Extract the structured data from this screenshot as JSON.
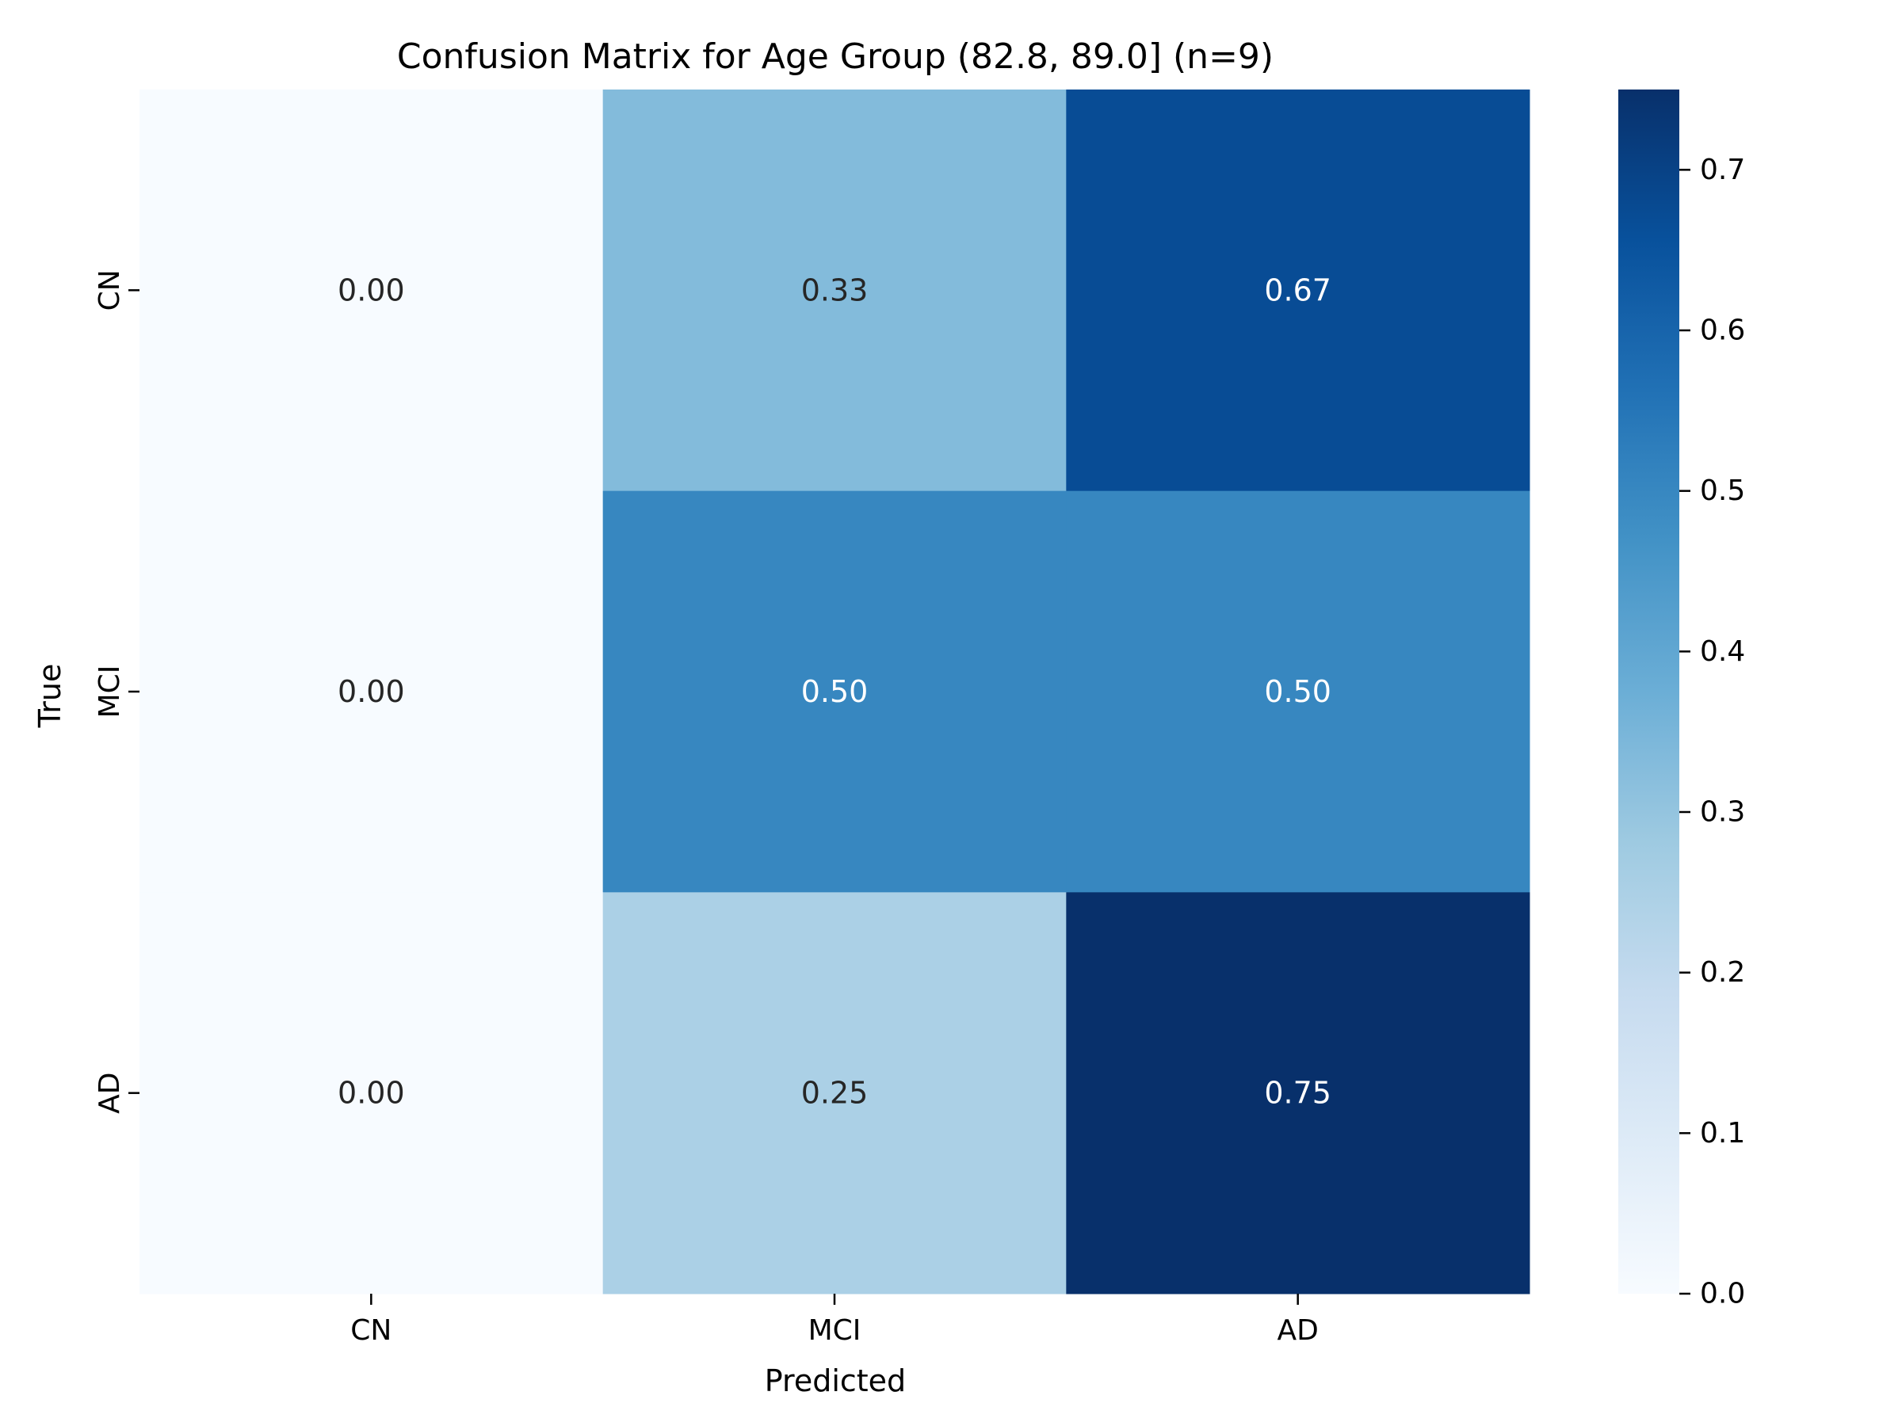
{
  "chart_data": {
    "type": "heatmap",
    "title": "Confusion Matrix for Age Group (82.8, 89.0] (n=9)",
    "xlabel": "Predicted",
    "ylabel": "True",
    "x_categories": [
      "CN",
      "MCI",
      "AD"
    ],
    "y_categories": [
      "CN",
      "MCI",
      "AD"
    ],
    "values": [
      [
        0.0,
        0.33,
        0.67
      ],
      [
        0.0,
        0.5,
        0.5
      ],
      [
        0.0,
        0.25,
        0.75
      ]
    ],
    "cell_labels": [
      [
        "0.00",
        "0.33",
        "0.67"
      ],
      [
        "0.00",
        "0.50",
        "0.50"
      ],
      [
        "0.00",
        "0.25",
        "0.75"
      ]
    ],
    "colormap": "Blues",
    "colorbar": {
      "range": [
        0.0,
        0.75
      ],
      "ticks": [
        0.0,
        0.1,
        0.2,
        0.3,
        0.4,
        0.5,
        0.6,
        0.7
      ],
      "tick_labels": [
        "0.0",
        "0.1",
        "0.2",
        "0.3",
        "0.4",
        "0.5",
        "0.6",
        "0.7"
      ]
    },
    "grid": false
  }
}
